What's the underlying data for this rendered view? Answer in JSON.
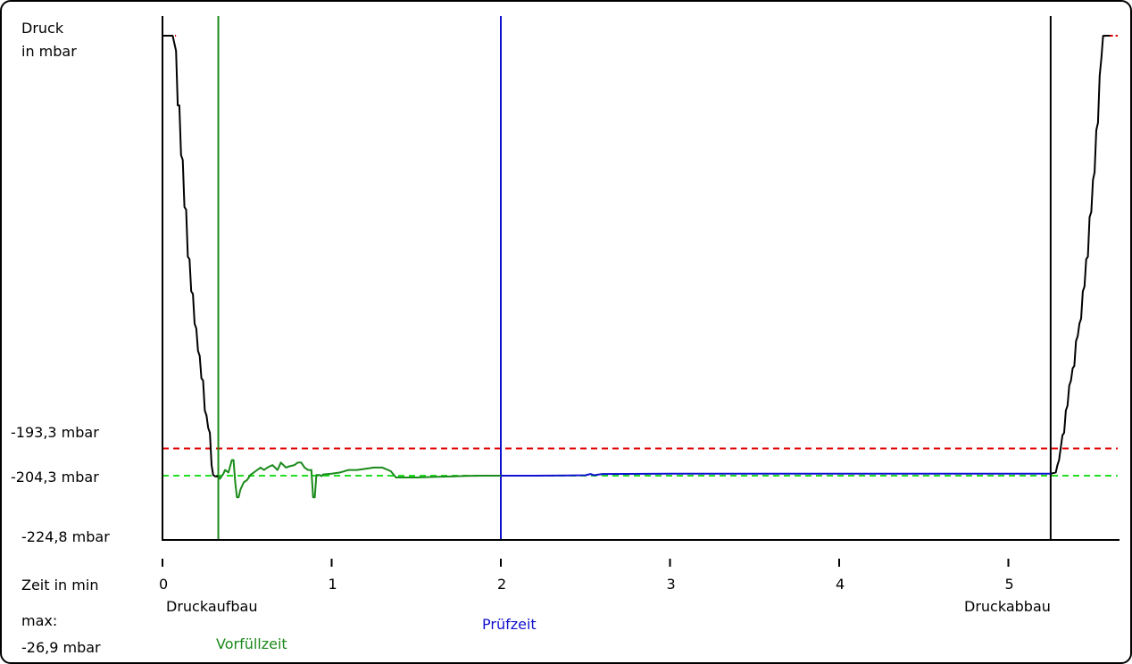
{
  "chart_data": {
    "type": "line",
    "ylabel_line1": "Druck",
    "ylabel_line2": "in mbar",
    "xlabel": "Zeit in min",
    "xlim": [
      0,
      5.6
    ],
    "ylim": [
      -224.8,
      -26.9
    ],
    "x_ticks": [
      "0",
      "1",
      "2",
      "3",
      "4",
      "5"
    ],
    "y_ticks": [
      "-193,3 mbar",
      "-204,3 mbar",
      "-224,8 mbar"
    ],
    "max_label": "max:",
    "max_value": "-26,9 mbar",
    "phases": [
      {
        "name": "Druckaufbau",
        "start": 0,
        "color": "#000000"
      },
      {
        "name": "Vorfüllzeit",
        "start": 0.33,
        "color": "#1a8a1a"
      },
      {
        "name": "Prüfzeit",
        "start": 2.0,
        "color": "#1010d0"
      },
      {
        "name": "Druckabbau",
        "start": 5.25,
        "color": "#000000"
      }
    ],
    "limits": {
      "upper": -193.3,
      "lower": -204.3,
      "upper_color": "#e00000",
      "lower_color": "#22dd22"
    },
    "series": [
      {
        "phase": "Druckaufbau",
        "color": "#000000",
        "x": [
          0.0,
          0.06,
          0.08,
          0.09,
          0.1,
          0.11,
          0.12,
          0.13,
          0.14,
          0.15,
          0.16,
          0.17,
          0.18,
          0.19,
          0.2,
          0.21,
          0.22,
          0.23,
          0.24,
          0.25,
          0.26,
          0.27,
          0.28,
          0.29,
          0.3,
          0.31,
          0.32,
          0.33
        ],
        "y": [
          -26.9,
          -26.9,
          -33,
          -55,
          -55,
          -75,
          -77,
          -96,
          -97,
          -116,
          -117,
          -130,
          -131,
          -143,
          -145,
          -154,
          -156,
          -165,
          -166,
          -178,
          -180,
          -185,
          -187,
          -200,
          -204,
          -204.5,
          -204.6,
          -204.5
        ]
      },
      {
        "phase": "Vorfüllzeit",
        "color": "#1a8a1a",
        "x": [
          0.33,
          0.34,
          0.36,
          0.37,
          0.39,
          0.41,
          0.42,
          0.43,
          0.44,
          0.45,
          0.46,
          0.48,
          0.5,
          0.52,
          0.55,
          0.58,
          0.6,
          0.62,
          0.65,
          0.68,
          0.7,
          0.73,
          0.75,
          0.78,
          0.8,
          0.82,
          0.84,
          0.86,
          0.88,
          0.89,
          0.9,
          0.91,
          0.93,
          0.94,
          0.95,
          1.0,
          1.05,
          1.1,
          1.15,
          1.2,
          1.25,
          1.3,
          1.35,
          1.38,
          1.4,
          1.45,
          1.5,
          1.6,
          1.7,
          1.8,
          1.9,
          2.0
        ],
        "y": [
          -204.5,
          -205.5,
          -203.5,
          -202,
          -203,
          -198,
          -198,
          -207,
          -213,
          -213,
          -210,
          -207,
          -206,
          -204,
          -202.5,
          -201,
          -202,
          -201,
          -200,
          -202,
          -199,
          -201,
          -200.5,
          -200,
          -199,
          -199,
          -201,
          -202,
          -202,
          -213,
          -213,
          -204,
          -204,
          -204.5,
          -203.8,
          -203.5,
          -203,
          -202,
          -202,
          -201.5,
          -201,
          -201,
          -202.5,
          -205,
          -205,
          -205,
          -205,
          -204.8,
          -204.6,
          -204.4,
          -204.3,
          -204.3
        ]
      },
      {
        "phase": "Prüfzeit",
        "color": "#1010d0",
        "x": [
          2.0,
          2.2,
          2.4,
          2.5,
          2.53,
          2.55,
          2.6,
          3.0,
          4.0,
          5.0,
          5.25
        ],
        "y": [
          -204.3,
          -204.3,
          -204.2,
          -204.1,
          -203.6,
          -204.1,
          -203.6,
          -203.5,
          -203.5,
          -203.5,
          -203.5
        ]
      },
      {
        "phase": "Druckabbau",
        "color": "#000000",
        "x": [
          5.25,
          5.28,
          5.29,
          5.3,
          5.31,
          5.32,
          5.33,
          5.34,
          5.35,
          5.36,
          5.37,
          5.38,
          5.39,
          5.4,
          5.41,
          5.42,
          5.43,
          5.44,
          5.45,
          5.46,
          5.47,
          5.48,
          5.49,
          5.5,
          5.51,
          5.52,
          5.53,
          5.54,
          5.55,
          5.56,
          5.58,
          5.6
        ],
        "y": [
          -203.5,
          -203,
          -200,
          -198,
          -193,
          -188,
          -187,
          -178,
          -176,
          -168,
          -166,
          -161,
          -160,
          -150,
          -148,
          -143,
          -141,
          -130,
          -128,
          -117,
          -116,
          -100,
          -98,
          -85,
          -82,
          -65,
          -62,
          -43,
          -36,
          -27,
          -26.9,
          -26.9
        ]
      }
    ]
  }
}
